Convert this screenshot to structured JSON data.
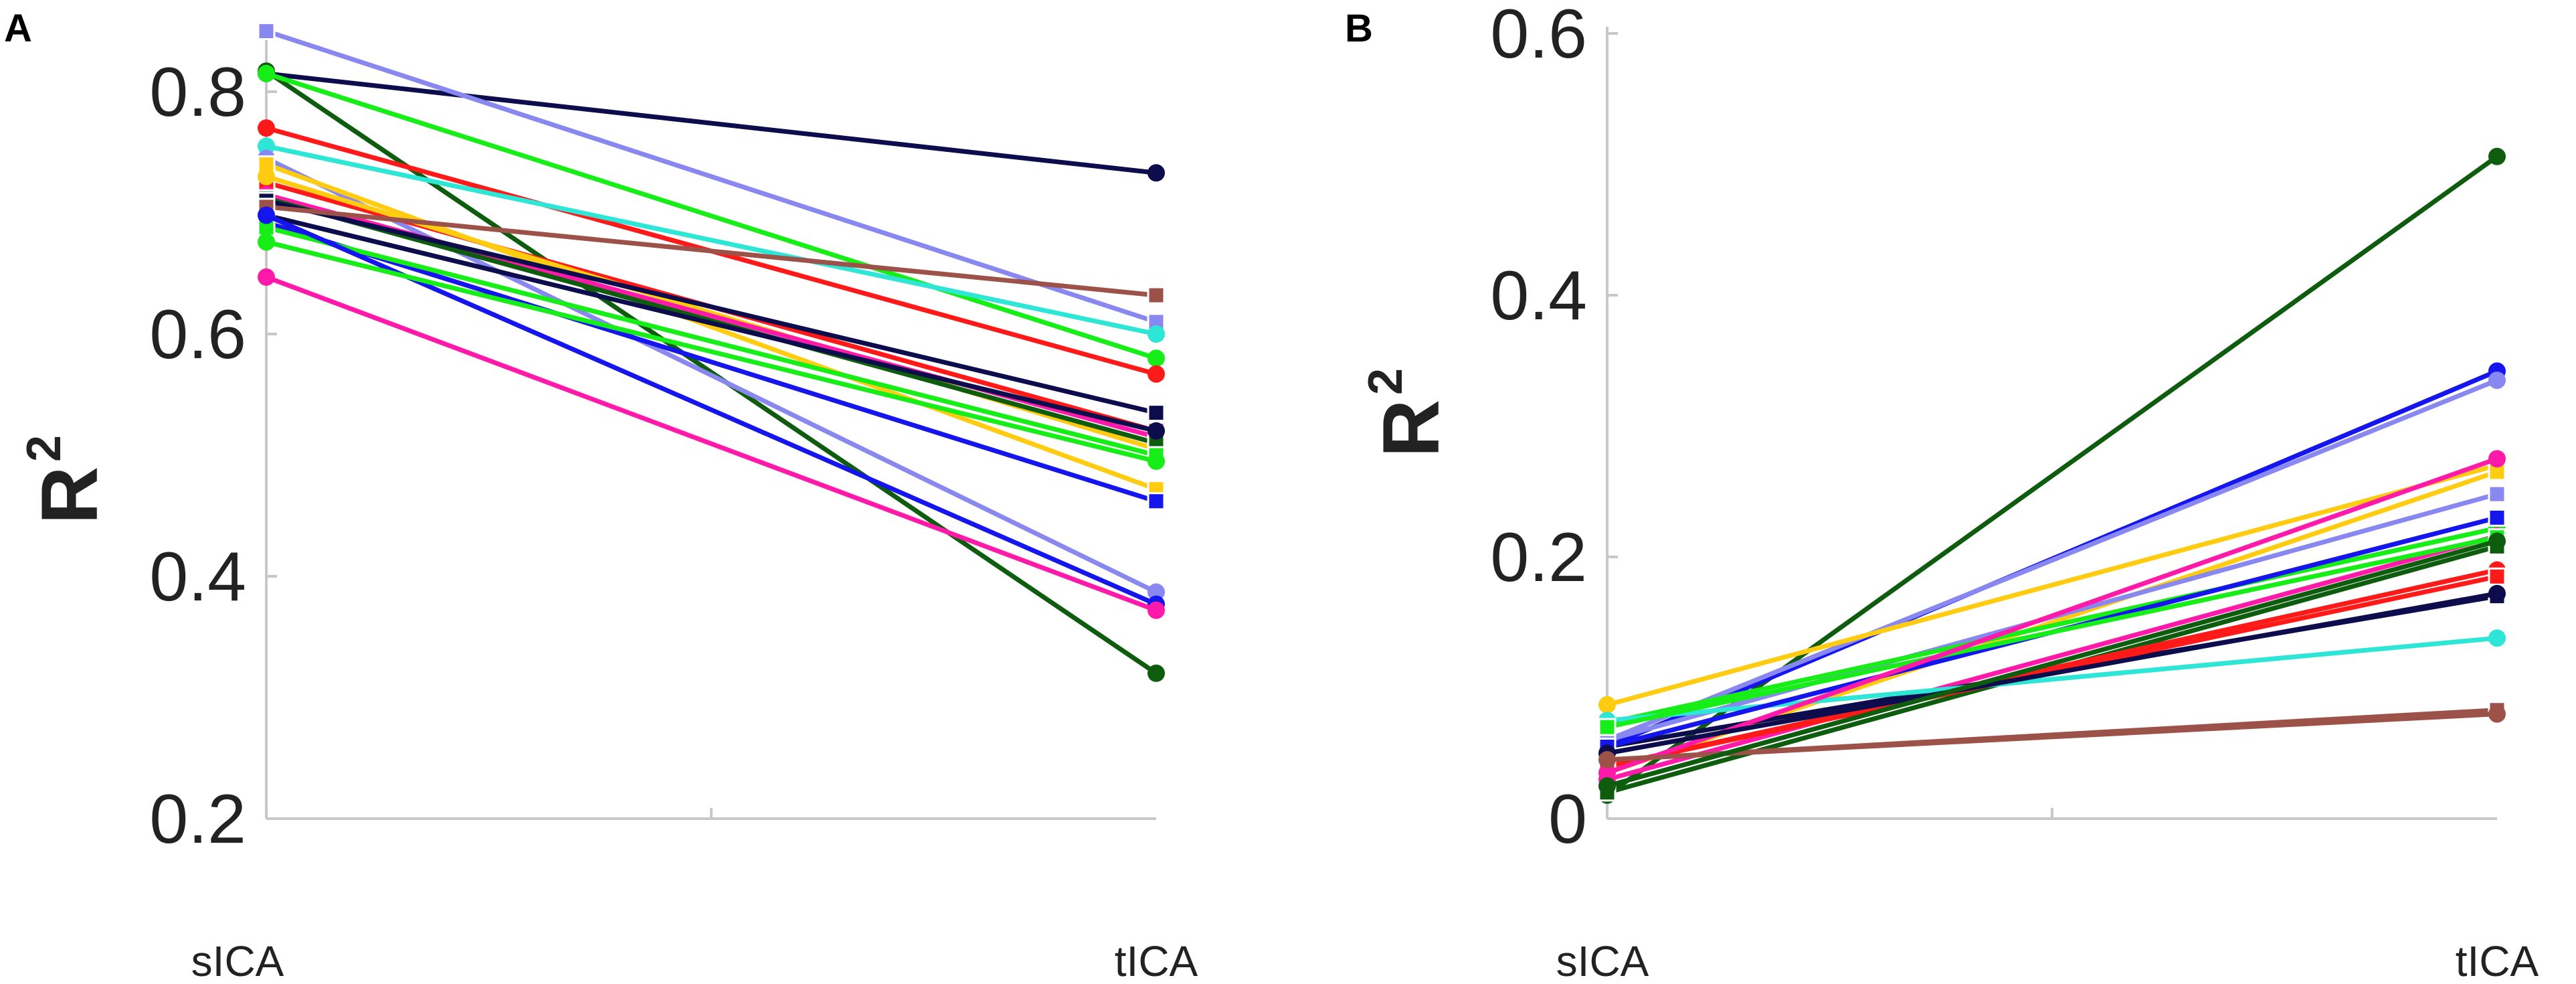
{
  "chart_data": [
    {
      "panel_label": "A",
      "type": "line",
      "title": "",
      "xlabel": "",
      "ylabel": "R",
      "ylabel_superscript": "2",
      "categories": [
        "sICA",
        "tICA"
      ],
      "ylim": [
        0.2,
        0.85
      ],
      "yticks": [
        0.2,
        0.4,
        0.6,
        0.8
      ],
      "ytick_labels": [
        "0.2",
        "0.4",
        "0.6",
        "0.8"
      ],
      "grid": false,
      "series": [
        {
          "color": "#0d0d4d",
          "marker": "circle",
          "values": [
            0.815,
            0.733
          ]
        },
        {
          "color": "#8888f0",
          "marker": "square",
          "values": [
            0.85,
            0.61
          ]
        },
        {
          "color": "#0e5c0e",
          "marker": "circle",
          "values": [
            0.817,
            0.32
          ]
        },
        {
          "color": "#17ee17",
          "marker": "circle",
          "values": [
            0.815,
            0.58
          ]
        },
        {
          "color": "#ff1a1a",
          "marker": "circle",
          "values": [
            0.77,
            0.567
          ]
        },
        {
          "color": "#2de6d6",
          "marker": "circle",
          "values": [
            0.755,
            0.6
          ]
        },
        {
          "color": "#8888f0",
          "marker": "circle",
          "values": [
            0.745,
            0.387
          ]
        },
        {
          "color": "#ffcc11",
          "marker": "square",
          "values": [
            0.74,
            0.472
          ]
        },
        {
          "color": "#ff1a1a",
          "marker": "square",
          "values": [
            0.725,
            0.52
          ]
        },
        {
          "color": "#ffcc11",
          "marker": "circle",
          "values": [
            0.73,
            0.505
          ]
        },
        {
          "color": "#ff1aaa",
          "marker": "circle",
          "values": [
            0.715,
            0.515
          ]
        },
        {
          "color": "#0e5c0e",
          "marker": "square",
          "values": [
            0.712,
            0.51
          ]
        },
        {
          "color": "#0d0d4d",
          "marker": "square",
          "values": [
            0.71,
            0.535
          ]
        },
        {
          "color": "#9c5248",
          "marker": "square",
          "values": [
            0.705,
            0.632
          ]
        },
        {
          "color": "#0d0d4d",
          "marker": "circle",
          "values": [
            0.698,
            0.52
          ]
        },
        {
          "color": "#1515ee",
          "marker": "square",
          "values": [
            0.692,
            0.462
          ]
        },
        {
          "color": "#17ee17",
          "marker": "square",
          "values": [
            0.688,
            0.5
          ]
        },
        {
          "color": "#1515ee",
          "marker": "circle",
          "values": [
            0.698,
            0.377
          ]
        },
        {
          "color": "#17ee17",
          "marker": "circle",
          "values": [
            0.676,
            0.495
          ]
        },
        {
          "color": "#ff1aaa",
          "marker": "circle",
          "values": [
            0.647,
            0.372
          ]
        }
      ]
    },
    {
      "panel_label": "B",
      "type": "line",
      "title": "",
      "xlabel": "",
      "ylabel": "R",
      "ylabel_superscript": "2",
      "categories": [
        "sICA",
        "tICA"
      ],
      "ylim": [
        0,
        0.6
      ],
      "yticks": [
        0,
        0.2,
        0.4,
        0.6
      ],
      "ytick_labels": [
        "0",
        "0.2",
        "0.4",
        "0.6"
      ],
      "grid": false,
      "series": [
        {
          "color": "#0e5c0e",
          "marker": "circle",
          "values": [
            0.018,
            0.506
          ]
        },
        {
          "color": "#1515ee",
          "marker": "circle",
          "values": [
            0.055,
            0.342
          ]
        },
        {
          "color": "#8888f0",
          "marker": "circle",
          "values": [
            0.06,
            0.335
          ]
        },
        {
          "color": "#ffcc11",
          "marker": "circle",
          "values": [
            0.087,
            0.27
          ]
        },
        {
          "color": "#ffcc11",
          "marker": "square",
          "values": [
            0.035,
            0.265
          ]
        },
        {
          "color": "#8888f0",
          "marker": "square",
          "values": [
            0.06,
            0.248
          ]
        },
        {
          "color": "#17ee17",
          "marker": "circle",
          "values": [
            0.073,
            0.222
          ]
        },
        {
          "color": "#ff1aaa",
          "marker": "circle",
          "values": [
            0.03,
            0.216
          ]
        },
        {
          "color": "#0e5c0e",
          "marker": "square",
          "values": [
            0.02,
            0.208
          ]
        },
        {
          "color": "#0d0d4d",
          "marker": "square",
          "values": [
            0.055,
            0.17
          ]
        },
        {
          "color": "#9c5248",
          "marker": "square",
          "values": [
            0.045,
            0.083
          ]
        },
        {
          "color": "#ff1a1a",
          "marker": "circle",
          "values": [
            0.04,
            0.19
          ]
        },
        {
          "color": "#2de6d6",
          "marker": "circle",
          "values": [
            0.075,
            0.138
          ]
        },
        {
          "color": "#ff1a1a",
          "marker": "square",
          "values": [
            0.04,
            0.185
          ]
        },
        {
          "color": "#1515ee",
          "marker": "square",
          "values": [
            0.055,
            0.23
          ]
        },
        {
          "color": "#17ee17",
          "marker": "square",
          "values": [
            0.07,
            0.215
          ]
        },
        {
          "color": "#ff1aaa",
          "marker": "circle",
          "values": [
            0.035,
            0.275
          ]
        },
        {
          "color": "#0d0d4d",
          "marker": "circle",
          "values": [
            0.05,
            0.172
          ]
        },
        {
          "color": "#9c5248",
          "marker": "circle",
          "values": [
            0.045,
            0.08
          ]
        },
        {
          "color": "#0e5c0e",
          "marker": "circle",
          "values": [
            0.025,
            0.212
          ]
        }
      ]
    }
  ]
}
